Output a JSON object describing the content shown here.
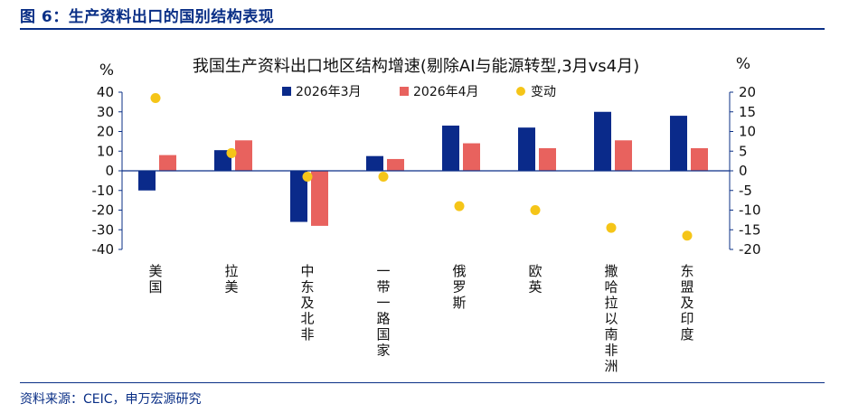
{
  "figure": {
    "title": "图 6：生产资料出口的国别结构表现",
    "source": "资料来源：CEIC，申万宏源研究"
  },
  "colors": {
    "bar_mar": "#0a2a8a",
    "bar_apr": "#e8625e",
    "dot": "#f5c518",
    "accent": "#0a2f86"
  },
  "chart_data": {
    "type": "bar",
    "title": "我国生产资料出口地区结构增速(剔除AI与能源转型,3月vs4月)",
    "ylabel_left": "%",
    "ylabel_right": "%",
    "ylim_left": [
      -40,
      40
    ],
    "ylim_right": [
      -20,
      20
    ],
    "yticks_left": [
      "40",
      "30",
      "20",
      "10",
      "0",
      "-10",
      "-20",
      "-30",
      "-40"
    ],
    "yticks_right": [
      "20",
      "15",
      "10",
      "5",
      "0",
      "-5",
      "-10",
      "-15",
      "-20"
    ],
    "categories": [
      "美国",
      "拉美",
      "中东及北非",
      "一带一路国家",
      "俄罗斯",
      "欧英",
      "撒哈拉以南非洲",
      "东盟及印度"
    ],
    "legend_position": "top",
    "series": [
      {
        "name": "2026年3月",
        "type": "bar",
        "axis": "left",
        "values": [
          -10,
          10.5,
          -26,
          7.5,
          23,
          22,
          30,
          28
        ]
      },
      {
        "name": "2026年4月",
        "type": "bar",
        "axis": "left",
        "values": [
          8,
          15.5,
          -28,
          6,
          14,
          11.5,
          15.5,
          11.5
        ]
      },
      {
        "name": "变动",
        "type": "scatter",
        "axis": "right",
        "values": [
          18.5,
          4.5,
          -1.5,
          -1.5,
          -9,
          -10,
          -14.5,
          -16.5
        ]
      }
    ]
  }
}
